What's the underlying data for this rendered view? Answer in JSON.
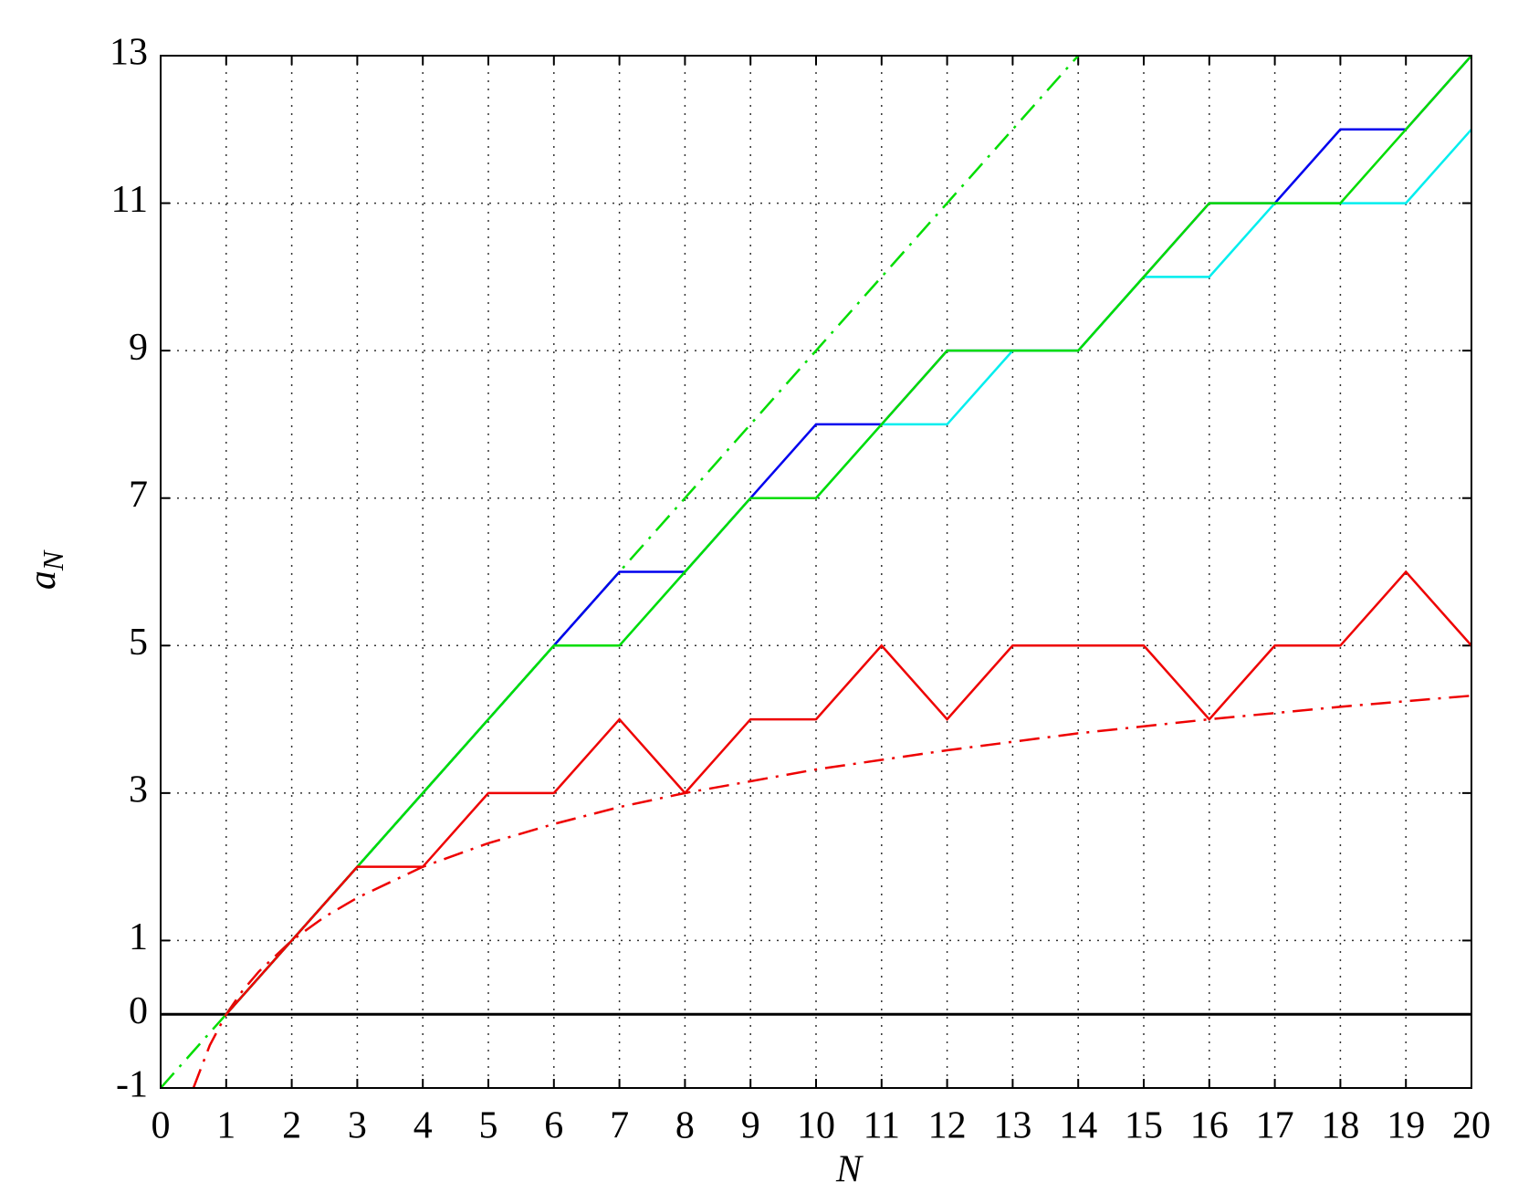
{
  "chart_data": {
    "type": "line",
    "xlabel": "N",
    "ylabel": "a",
    "ylabel_sub": "N",
    "xlim": [
      0,
      20
    ],
    "ylim": [
      -1,
      13
    ],
    "xticks": [
      0,
      1,
      2,
      3,
      4,
      5,
      6,
      7,
      8,
      9,
      10,
      11,
      12,
      13,
      14,
      15,
      16,
      17,
      18,
      19,
      20
    ],
    "yticks": [
      -1,
      0,
      1,
      3,
      5,
      7,
      9,
      11,
      13
    ],
    "grid": true,
    "series": [
      {
        "color": "#000000",
        "linestyle": "solid",
        "x": [
          0,
          20
        ],
        "values": [
          0,
          0
        ]
      },
      {
        "color": "#00dd00",
        "linestyle": "dashdot",
        "x": [
          0,
          14
        ],
        "values": [
          -1,
          13
        ]
      },
      {
        "color": "#ee0000",
        "linestyle": "dashdot",
        "x": [
          0.5,
          0.75,
          1,
          1.25,
          1.5,
          2,
          2.5,
          3,
          4,
          5,
          6,
          7,
          8,
          10,
          12,
          14,
          16,
          18,
          20
        ],
        "values": [
          -1,
          -0.42,
          0,
          0.32,
          0.58,
          1,
          1.32,
          1.58,
          2,
          2.32,
          2.58,
          2.81,
          3,
          3.32,
          3.58,
          3.81,
          4,
          4.17,
          4.32
        ]
      },
      {
        "color": "#0000ee",
        "linestyle": "solid",
        "x": [
          1,
          2,
          3,
          4,
          5,
          6,
          7,
          8,
          9,
          10,
          11,
          12,
          13,
          14,
          15,
          16,
          17,
          18,
          19,
          20
        ],
        "values": [
          0,
          1,
          2,
          3,
          4,
          5,
          6,
          6,
          7,
          8,
          8,
          9,
          9,
          9,
          10,
          11,
          11,
          12,
          12,
          13
        ]
      },
      {
        "color": "#00eeee",
        "linestyle": "solid",
        "x": [
          1,
          2,
          3,
          4,
          5,
          6,
          7,
          8,
          9,
          10,
          11,
          12,
          13,
          14,
          15,
          16,
          17,
          18,
          19,
          20
        ],
        "values": [
          0,
          1,
          2,
          3,
          4,
          5,
          5,
          6,
          7,
          7,
          8,
          8,
          9,
          9,
          10,
          10,
          11,
          11,
          11,
          12
        ]
      },
      {
        "color": "#00dd00",
        "linestyle": "solid",
        "x": [
          1,
          2,
          3,
          4,
          5,
          6,
          7,
          8,
          9,
          10,
          11,
          12,
          13,
          14,
          15,
          16,
          17,
          18,
          19,
          20
        ],
        "values": [
          0,
          1,
          2,
          3,
          4,
          5,
          5,
          6,
          7,
          7,
          8,
          9,
          9,
          9,
          10,
          11,
          11,
          11,
          12,
          13
        ]
      },
      {
        "color": "#ee0000",
        "linestyle": "solid",
        "x": [
          1,
          2,
          3,
          4,
          5,
          6,
          7,
          8,
          9,
          10,
          11,
          12,
          13,
          14,
          15,
          16,
          17,
          18,
          19,
          20
        ],
        "values": [
          0,
          1,
          2,
          2,
          3,
          3,
          4,
          3,
          4,
          4,
          5,
          4,
          5,
          5,
          5,
          4,
          5,
          5,
          6,
          5
        ]
      }
    ]
  }
}
